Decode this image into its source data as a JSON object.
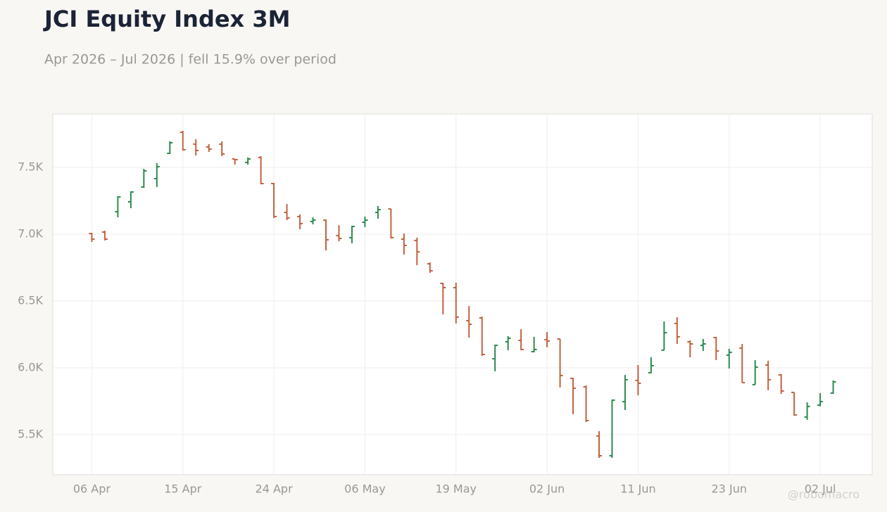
{
  "chart_data": {
    "type": "ohlc",
    "title": "JCI Equity Index 3M",
    "subtitle": "Apr 2026 – Jul 2026 | fell 15.9% over period",
    "watermark": "@robomacro",
    "categories": [
      "06 Apr",
      null,
      null,
      null,
      null,
      null,
      null,
      "15 Apr",
      null,
      null,
      null,
      null,
      null,
      null,
      "24 Apr",
      null,
      null,
      null,
      null,
      null,
      null,
      "06 May",
      null,
      null,
      null,
      null,
      null,
      null,
      "19 May",
      null,
      null,
      null,
      null,
      null,
      null,
      "02 Jun",
      null,
      null,
      null,
      null,
      null,
      null,
      "11 Jun",
      null,
      null,
      null,
      null,
      null,
      null,
      "23 Jun",
      null,
      null,
      null,
      null,
      null,
      null,
      "02 Jul",
      null
    ],
    "open": [
      7005,
      7016,
      7168,
      7242,
      7353,
      7416,
      7605,
      7763,
      7674,
      7653,
      7674,
      7563,
      7537,
      7574,
      7379,
      7163,
      7132,
      7095,
      7105,
      6989,
      6974,
      7089,
      7163,
      7189,
      6963,
      6953,
      6779,
      6632,
      6600,
      6353,
      6374,
      6068,
      6195,
      6205,
      6121,
      6211,
      6216,
      5921,
      5858,
      5489,
      5342,
      5747,
      5905,
      5963,
      6132,
      6332,
      6195,
      6168,
      6226,
      6095,
      6147,
      5874,
      6021,
      5947,
      5816,
      5632,
      5721,
      5811
    ],
    "high": [
      7010,
      7026,
      7284,
      7321,
      7489,
      7532,
      7695,
      7774,
      7711,
      7674,
      7695,
      7563,
      7574,
      7584,
      7384,
      7226,
      7147,
      7126,
      7111,
      7068,
      7063,
      7132,
      7211,
      7189,
      7005,
      6974,
      6789,
      6637,
      6637,
      6463,
      6384,
      6174,
      6237,
      6289,
      6232,
      6268,
      6216,
      5926,
      5868,
      5526,
      5763,
      5947,
      6021,
      6079,
      6347,
      6379,
      6205,
      6216,
      6232,
      6142,
      6179,
      6058,
      6053,
      5953,
      5816,
      5742,
      5811,
      5905
    ],
    "low": [
      6942,
      6953,
      7126,
      7195,
      7347,
      7353,
      7600,
      7626,
      7589,
      7616,
      7584,
      7521,
      7521,
      7374,
      7121,
      7105,
      7037,
      7074,
      6879,
      6947,
      6932,
      7053,
      7116,
      6968,
      6847,
      6768,
      6711,
      6400,
      6332,
      6226,
      6089,
      5974,
      6132,
      6132,
      6116,
      6153,
      5853,
      5653,
      5595,
      5326,
      5326,
      5684,
      5795,
      5958,
      6132,
      6179,
      6079,
      6126,
      6058,
      5995,
      5889,
      5874,
      5832,
      5805,
      5642,
      5611,
      5711,
      5805
    ],
    "close": [
      6963,
      6963,
      7279,
      7316,
      7474,
      7505,
      7684,
      7632,
      7626,
      7637,
      7600,
      7558,
      7563,
      7379,
      7132,
      7121,
      7079,
      7105,
      6958,
      6968,
      7058,
      7105,
      7184,
      6974,
      6916,
      6868,
      6726,
      6600,
      6379,
      6326,
      6100,
      6168,
      6221,
      6137,
      6137,
      6200,
      5942,
      5847,
      5605,
      5342,
      5758,
      5911,
      5884,
      6016,
      6263,
      6232,
      6179,
      6179,
      6126,
      6116,
      5889,
      6005,
      5911,
      5826,
      5647,
      5711,
      5747,
      5895
    ],
    "up_color": "#2e8a50",
    "down_color": "#c2623f",
    "ylim": [
      5200,
      7900
    ],
    "yticks": [
      {
        "value": 5500,
        "label": "5.5K"
      },
      {
        "value": 6000,
        "label": "6.0K"
      },
      {
        "value": 6500,
        "label": "6.5K"
      },
      {
        "value": 7000,
        "label": "7.0K"
      },
      {
        "value": 7500,
        "label": "7.5K"
      }
    ],
    "grid": true
  }
}
